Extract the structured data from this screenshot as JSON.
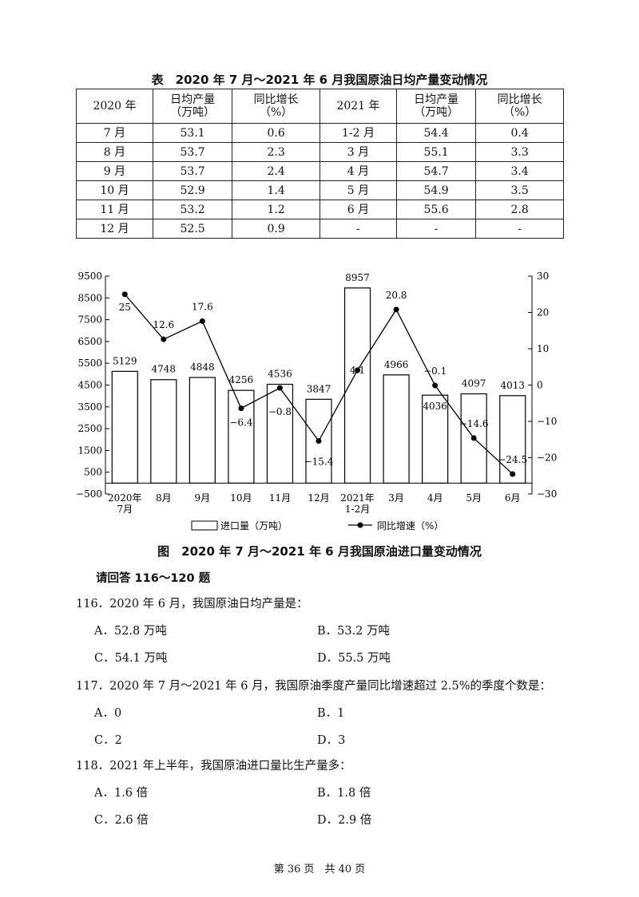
{
  "table": {
    "title": "表　2020 年 7 月～2021 年 6 月我国原油日均产量变动情况",
    "headers": [
      "2020 年",
      "日均产量（万吨）",
      "同比增长（%）",
      "2021 年",
      "日均产量（万吨）",
      "同比增长（%）"
    ],
    "header_lines": [
      [
        "2020 年"
      ],
      [
        "日均产量",
        "（万吨）"
      ],
      [
        "同比增长",
        "（%）"
      ],
      [
        "2021 年"
      ],
      [
        "日均产量",
        "（万吨）"
      ],
      [
        "同比增长",
        "（%）"
      ]
    ],
    "rows": [
      [
        "7 月",
        "53.1",
        "0.6",
        "1-2 月",
        "54.4",
        "0.4"
      ],
      [
        "8 月",
        "53.7",
        "2.3",
        "3 月",
        "55.1",
        "3.3"
      ],
      [
        "9 月",
        "53.7",
        "2.4",
        "4 月",
        "54.7",
        "3.4"
      ],
      [
        "10 月",
        "52.9",
        "1.4",
        "5 月",
        "54.9",
        "3.5"
      ],
      [
        "11 月",
        "53.2",
        "1.2",
        "6 月",
        "55.6",
        "2.8"
      ],
      [
        "12 月",
        "52.5",
        "0.9",
        "-",
        "-",
        "-"
      ]
    ]
  },
  "chart_data": {
    "type": "bar+line",
    "title": "图　2020 年 7 月～2021 年 6 月我国原油进口量变动情况",
    "categories": [
      [
        "2020年",
        "7月"
      ],
      [
        "8月"
      ],
      [
        "9月"
      ],
      [
        "10月"
      ],
      [
        "11月"
      ],
      [
        "12月"
      ],
      [
        "2021年",
        "1-2月"
      ],
      [
        "3月"
      ],
      [
        "4月"
      ],
      [
        "5月"
      ],
      [
        "6月"
      ]
    ],
    "series": [
      {
        "name": "进口量（万吨）",
        "type": "bar",
        "axis": "left",
        "values": [
          5129,
          4748,
          4848,
          4256,
          4536,
          3847,
          8957,
          4966,
          4036,
          4097,
          4013
        ]
      },
      {
        "name": "同比增速（%）",
        "type": "line",
        "axis": "right",
        "values": [
          25,
          12.6,
          17.6,
          -6.4,
          -0.8,
          -15.4,
          4.1,
          20.8,
          -0.1,
          -14.6,
          -24.5
        ]
      }
    ],
    "left_axis": {
      "ticks": [
        -500,
        500,
        1500,
        2500,
        3500,
        4500,
        5500,
        6500,
        7500,
        8500,
        9500
      ],
      "range": [
        -500,
        9500
      ]
    },
    "right_axis": {
      "ticks": [
        -30,
        -20,
        -10,
        0,
        10,
        20,
        30
      ],
      "range": [
        -30,
        30
      ]
    },
    "legend_placement": "bottom",
    "grid": false
  },
  "instructions": "请回答 116～120 题",
  "questions": [
    {
      "stem": "116．2020 年 6 月，我国原油日均产量是：",
      "options": [
        "A．52.8 万吨",
        "B．53.2 万吨",
        "C．54.1 万吨",
        "D．55.5 万吨"
      ]
    },
    {
      "stem": "117．2020 年 7 月～2021 年 6 月，我国原油季度产量同比增速超过 2.5%的季度个数是：",
      "options": [
        "A．0",
        "B．1",
        "C．2",
        "D．3"
      ]
    },
    {
      "stem": "118．2021 年上半年，我国原油进口量比生产量多：",
      "options": [
        "A．1.6 倍",
        "B．1.8 倍",
        "C．2.6 倍",
        "D．2.9 倍"
      ]
    }
  ],
  "footer": "第 36 页　共 40 页"
}
